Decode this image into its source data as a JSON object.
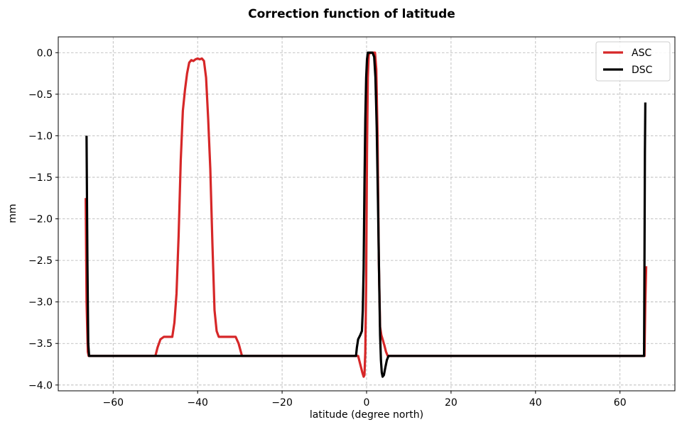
{
  "chart_data": {
    "type": "line",
    "title": "Correction function of latitude",
    "xlabel": "latitude (degree north)",
    "ylabel": "mm",
    "xlim": [
      -73,
      73
    ],
    "ylim": [
      -4.07,
      0.19
    ],
    "xticks": [
      -60,
      -40,
      -20,
      0,
      20,
      40,
      60
    ],
    "xtick_labels": [
      "−60",
      "−40",
      "−20",
      "0",
      "20",
      "40",
      "60"
    ],
    "yticks": [
      0.0,
      -0.5,
      -1.0,
      -1.5,
      -2.0,
      -2.5,
      -3.0,
      -3.5,
      -4.0
    ],
    "ytick_labels": [
      "0.0",
      "−0.5",
      "−1.0",
      "−1.5",
      "−2.0",
      "−2.5",
      "−3.0",
      "−3.5",
      "−4.0"
    ],
    "grid": true,
    "legend_position": "top-right",
    "series": [
      {
        "name": "ASC",
        "color": "#d62728",
        "x": [
          -66.5,
          -66.3,
          -66.0,
          -65.8,
          -50.0,
          -49.5,
          -48.8,
          -48.0,
          -47.0,
          -46.0,
          -45.5,
          -45.0,
          -44.5,
          -44.0,
          -43.5,
          -43.0,
          -42.5,
          -42.0,
          -41.5,
          -41.0,
          -40.5,
          -40.0,
          -39.5,
          -39.0,
          -38.5,
          -38.0,
          -37.5,
          -37.0,
          -36.5,
          -36.0,
          -35.5,
          -35.0,
          -34.5,
          -34.0,
          -33.0,
          -32.0,
          -31.0,
          -30.3,
          -29.5,
          -29.0,
          -2.0,
          -1.5,
          -1.0,
          -0.7,
          -0.5,
          -0.3,
          -0.1,
          0.1,
          0.3,
          0.5,
          0.8,
          1.2,
          1.6,
          2.0,
          2.3,
          2.6,
          2.9,
          3.2,
          3.5,
          3.8,
          4.2,
          4.6,
          5.0,
          5.6,
          6.0,
          65.8,
          66.0,
          66.2
        ],
        "y": [
          -1.75,
          -3.0,
          -3.6,
          -3.65,
          -3.65,
          -3.55,
          -3.45,
          -3.42,
          -3.42,
          -3.42,
          -3.25,
          -2.9,
          -2.2,
          -1.3,
          -0.7,
          -0.45,
          -0.25,
          -0.12,
          -0.09,
          -0.1,
          -0.08,
          -0.07,
          -0.08,
          -0.07,
          -0.1,
          -0.3,
          -0.8,
          -1.4,
          -2.3,
          -3.1,
          -3.35,
          -3.42,
          -3.42,
          -3.42,
          -3.42,
          -3.42,
          -3.42,
          -3.5,
          -3.65,
          -3.65,
          -3.65,
          -3.75,
          -3.85,
          -3.9,
          -3.88,
          -3.6,
          -2.8,
          -1.2,
          -0.3,
          -0.03,
          0.0,
          0.0,
          0.0,
          0.0,
          -0.2,
          -1.0,
          -2.5,
          -3.3,
          -3.4,
          -3.45,
          -3.52,
          -3.6,
          -3.65,
          -3.65,
          -3.65,
          -3.65,
          -3.0,
          -2.57
        ]
      },
      {
        "name": "DSC",
        "color": "#000000",
        "x": [
          -66.3,
          -66.1,
          -65.9,
          -65.7,
          -2.5,
          -2.3,
          -2.0,
          -1.5,
          -1.1,
          -0.9,
          -0.7,
          -0.5,
          -0.3,
          -0.1,
          0.1,
          0.3,
          0.6,
          1.0,
          1.4,
          1.8,
          2.1,
          2.4,
          2.7,
          3.0,
          3.2,
          3.4,
          3.6,
          3.8,
          4.1,
          4.4,
          4.8,
          5.2,
          5.6,
          6.0,
          65.7,
          65.8,
          65.9,
          66.0
        ],
        "y": [
          -1.0,
          -2.5,
          -3.5,
          -3.65,
          -3.65,
          -3.55,
          -3.45,
          -3.4,
          -3.35,
          -3.1,
          -2.6,
          -1.6,
          -0.8,
          -0.3,
          -0.08,
          0.0,
          0.0,
          0.0,
          0.0,
          -0.05,
          -0.3,
          -0.9,
          -1.8,
          -2.8,
          -3.4,
          -3.7,
          -3.85,
          -3.9,
          -3.88,
          -3.8,
          -3.7,
          -3.65,
          -3.65,
          -3.65,
          -3.65,
          -2.5,
          -1.2,
          -0.6
        ]
      }
    ]
  }
}
